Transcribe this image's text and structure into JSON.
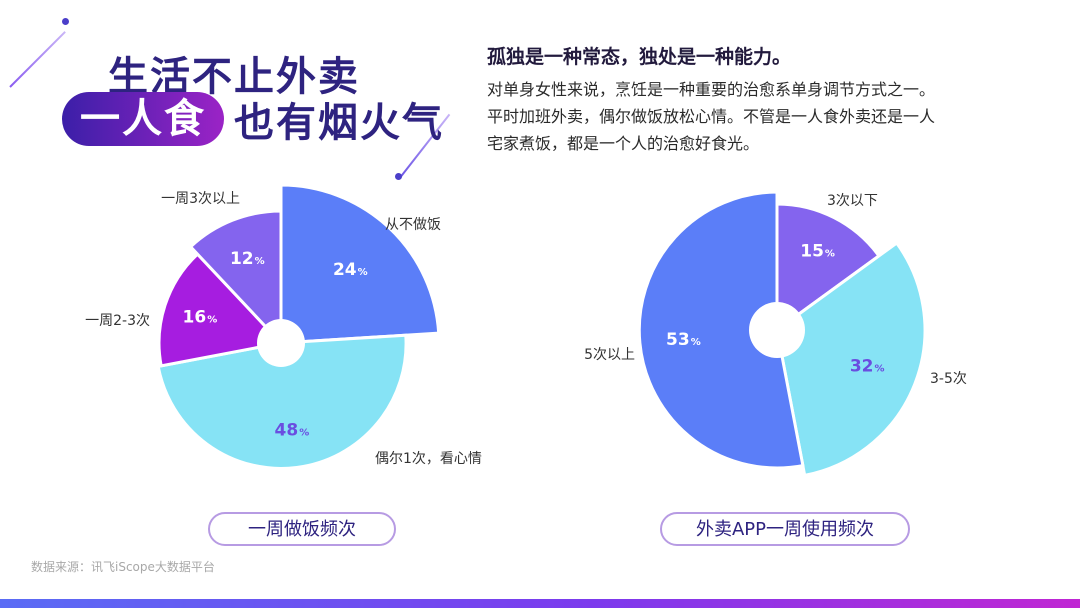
{
  "title": {
    "line1": "生活不止外卖",
    "pill": "一人食",
    "line2_rest": "也有烟火气"
  },
  "headline": "孤独是一种常态，独处是一种能力。",
  "paragraph": [
    "对单身女性来说，烹饪是一种重要的治愈系单身调节方式之一。",
    "平时加班外卖，偶尔做饭放松心情。不管是一人食外卖还是一人",
    "宅家煮饭，都是一个人的治愈好食光。"
  ],
  "source": "数据来源：讯飞iScope大数据平台",
  "chart_data": [
    {
      "type": "pie",
      "title": "一周做饭频次",
      "slices": [
        {
          "label": "从不做饭",
          "value": 24,
          "color": "#5b7ef8"
        },
        {
          "label": "偶尔1次，看心情",
          "value": 48,
          "color": "#86e3f5"
        },
        {
          "label": "一周2-3次",
          "value": 16,
          "color": "#a61de0"
        },
        {
          "label": "一周3次以上",
          "value": 12,
          "color": "#8464ee"
        }
      ]
    },
    {
      "type": "pie",
      "title": "外卖APP一周使用频次",
      "slices": [
        {
          "label": "3次以下",
          "value": 15,
          "color": "#8464ee"
        },
        {
          "label": "3-5次",
          "value": 32,
          "color": "#86e3f5"
        },
        {
          "label": "5次以上",
          "value": 53,
          "color": "#5b7ef8"
        }
      ]
    }
  ]
}
